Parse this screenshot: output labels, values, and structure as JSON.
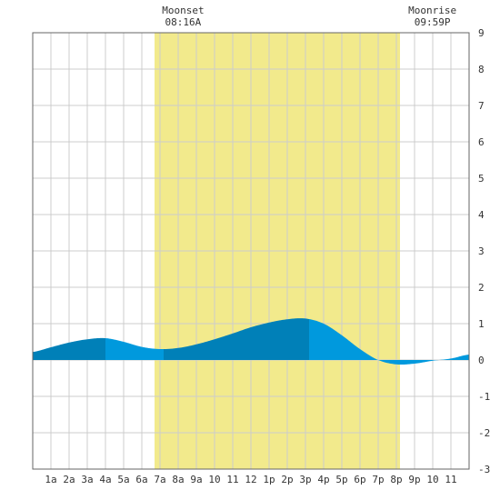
{
  "chart_data": {
    "type": "area",
    "title": "",
    "xlabel": "",
    "ylabel": "",
    "x_range": [
      0,
      24
    ],
    "ylim": [
      -3,
      9
    ],
    "grid": true,
    "x_tick_labels": [
      "1a",
      "2a",
      "3a",
      "4a",
      "5a",
      "6a",
      "7a",
      "8a",
      "9a",
      "10",
      "11",
      "12",
      "1p",
      "2p",
      "3p",
      "4p",
      "5p",
      "6p",
      "7p",
      "8p",
      "9p",
      "10",
      "11"
    ],
    "y_tick_labels": [
      "-3",
      "-2",
      "-1",
      "0",
      "1",
      "2",
      "3",
      "4",
      "5",
      "6",
      "7",
      "8",
      "9"
    ],
    "daylight_band": [
      6.7,
      20.2
    ],
    "events": [
      {
        "name": "Moonset",
        "time": "08:16A",
        "hour": 8.27
      },
      {
        "name": "Moonrise",
        "time": "09:59P",
        "hour": 21.98
      }
    ],
    "tide_series": {
      "name": "",
      "x": [
        0,
        1,
        2,
        3,
        4,
        5,
        6,
        7,
        8,
        9,
        10,
        11,
        12,
        13,
        14,
        15,
        16,
        17,
        18,
        19,
        20,
        21,
        22,
        23,
        24
      ],
      "values": [
        0.22,
        0.35,
        0.48,
        0.57,
        0.6,
        0.5,
        0.36,
        0.3,
        0.33,
        0.43,
        0.57,
        0.73,
        0.9,
        1.03,
        1.12,
        1.14,
        1.0,
        0.68,
        0.3,
        0.0,
        -0.12,
        -0.1,
        -0.02,
        0.04,
        0.15
      ]
    },
    "shading": [
      {
        "from": 0,
        "to": 4,
        "color": "#0080b8"
      },
      {
        "from": 4,
        "to": 7.2,
        "color": "#0099dd"
      },
      {
        "from": 7.2,
        "to": 15.2,
        "color": "#0080b8"
      },
      {
        "from": 15.2,
        "to": 24,
        "color": "#0099dd"
      }
    ],
    "colors": {
      "daylight": "#f2ea8c",
      "grid": "#cccccc",
      "axis": "#666666"
    }
  }
}
